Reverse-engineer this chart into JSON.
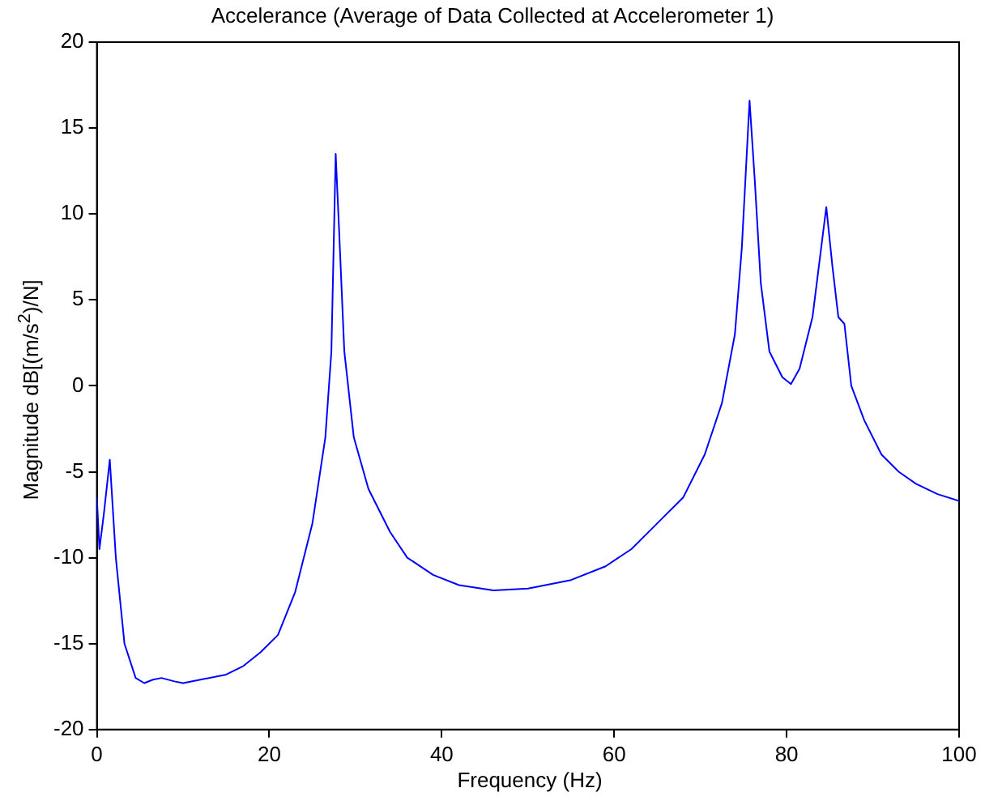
{
  "chart_data": {
    "type": "line",
    "title": "Accelerance (Average of Data Collected at Accelerometer 1)",
    "xlabel": "Frequency (Hz)",
    "ylabel": "Magnitude dB[(m/s$^{2}$)/N]",
    "x": [
      0,
      0.3,
      0.8,
      1.5,
      2.2,
      3.2,
      4.5,
      5.5,
      6.5,
      7.5,
      9,
      10,
      12,
      15,
      17,
      19,
      21,
      23,
      25,
      26.5,
      27.2,
      27.7,
      28.1,
      28.7,
      29.8,
      31.5,
      34,
      36,
      39,
      42,
      46,
      50,
      55,
      59,
      62,
      65,
      68,
      70.5,
      72.5,
      74,
      74.8,
      75.7,
      76.3,
      77,
      78,
      79.5,
      80.5,
      81.5,
      83,
      84,
      84.6,
      85.3,
      86,
      86.7,
      87.5,
      89,
      91,
      93,
      95,
      97.5,
      100
    ],
    "series": [
      {
        "color": "#0000ff",
        "values": [
          -6.5,
          -9.5,
          -7.5,
          -4.3,
          -10,
          -15,
          -17,
          -17.3,
          -17.1,
          -17,
          -17.2,
          -17.3,
          -17.1,
          -16.8,
          -16.3,
          -15.5,
          -14.5,
          -12,
          -8,
          -3,
          2,
          13.5,
          9,
          2,
          -3,
          -6,
          -8.5,
          -10,
          -11,
          -11.6,
          -11.9,
          -11.8,
          -11.3,
          -10.5,
          -9.5,
          -8,
          -6.5,
          -4,
          -1,
          3,
          8,
          16.6,
          12,
          6,
          2,
          0.5,
          0.1,
          1,
          4,
          8,
          10.4,
          7,
          4,
          3.6,
          0,
          -2,
          -4,
          -5,
          -5.7,
          -6.3,
          -6.7
        ]
      }
    ],
    "xlim": [
      0,
      100
    ],
    "xticks": [
      0,
      20,
      40,
      60,
      80,
      100
    ],
    "ylim": [
      -20,
      20
    ],
    "yticks": [
      -20,
      -15,
      -10,
      -5,
      0,
      5,
      10,
      15,
      20
    ],
    "grid": false,
    "legend": false,
    "marker": "none",
    "line_style": "solid"
  }
}
